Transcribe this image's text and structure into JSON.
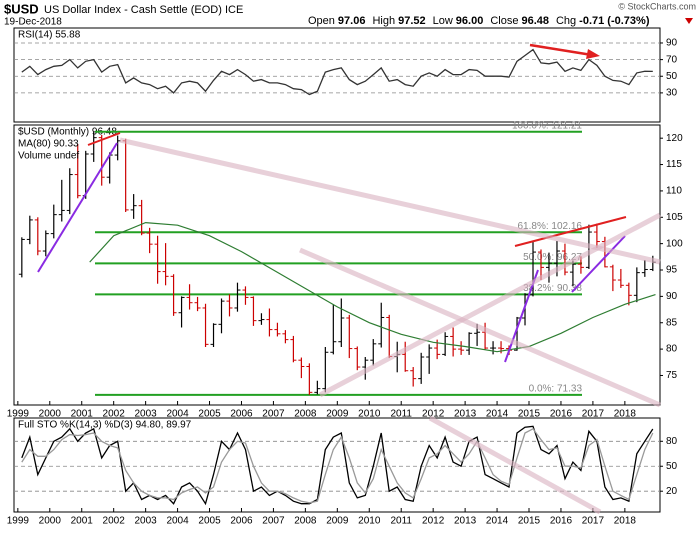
{
  "header": {
    "symbol": "$USD",
    "name": "US Dollar Index - Cash Settle (EOD) ICE",
    "date": "19-Dec-2018",
    "quote": [
      {
        "label": "Open",
        "value": "97.06"
      },
      {
        "label": "High",
        "value": "97.52"
      },
      {
        "label": "Low",
        "value": "96.00"
      },
      {
        "label": "Close",
        "value": "96.48"
      },
      {
        "label": "Chg",
        "value": "-0.71 (-0.73%)"
      }
    ],
    "credit": "© StockCharts.com"
  },
  "chart_data": [
    {
      "type": "line",
      "legend": "RSI(14) 55.88",
      "xlim": [
        1998.88,
        2019.1
      ],
      "ylim": [
        -5,
        108
      ],
      "yticks": [
        30,
        50,
        70,
        90
      ],
      "grid": true,
      "x": [
        1999.125,
        1999.375,
        1999.625,
        1999.875,
        2000.125,
        2000.375,
        2000.625,
        2000.875,
        2001.125,
        2001.375,
        2001.625,
        2001.875,
        2002.125,
        2002.375,
        2002.625,
        2002.875,
        2003.125,
        2003.375,
        2003.625,
        2003.875,
        2004.125,
        2004.375,
        2004.625,
        2004.875,
        2005.125,
        2005.375,
        2005.625,
        2005.875,
        2006.125,
        2006.375,
        2006.625,
        2006.875,
        2007.125,
        2007.375,
        2007.625,
        2007.875,
        2008.125,
        2008.375,
        2008.625,
        2008.875,
        2009.125,
        2009.375,
        2009.625,
        2009.875,
        2010.125,
        2010.375,
        2010.625,
        2010.875,
        2011.125,
        2011.375,
        2011.625,
        2011.875,
        2012.125,
        2012.375,
        2012.625,
        2012.875,
        2013.125,
        2013.375,
        2013.625,
        2013.875,
        2014.125,
        2014.375,
        2014.625,
        2014.875,
        2015.125,
        2015.375,
        2015.625,
        2015.875,
        2016.125,
        2016.375,
        2016.625,
        2016.875,
        2017.125,
        2017.375,
        2017.625,
        2017.875,
        2018.125,
        2018.375,
        2018.625,
        2018.875
      ],
      "series": [
        {
          "color": "#333333",
          "values": [
            55,
            62,
            52,
            58,
            62,
            63,
            70,
            60,
            68,
            70,
            55,
            62,
            64,
            42,
            48,
            42,
            40,
            35,
            38,
            30,
            42,
            44,
            42,
            32,
            45,
            56,
            52,
            58,
            52,
            44,
            46,
            42,
            42,
            40,
            35,
            34,
            28,
            32,
            55,
            58,
            60,
            46,
            40,
            44,
            52,
            60,
            44,
            46,
            40,
            38,
            50,
            54,
            50,
            58,
            52,
            52,
            58,
            57,
            50,
            50,
            50,
            49,
            68,
            75,
            82,
            66,
            65,
            67,
            56,
            60,
            57,
            70,
            63,
            50,
            45,
            44,
            40,
            54,
            56,
            55.88
          ]
        }
      ]
    },
    {
      "type": "ohlc",
      "legend": "$USD (Monthly) 96.48",
      "legend2": "Volume undef",
      "xlim": [
        1998.88,
        2019.1
      ],
      "ylim": [
        69.4,
        122.5
      ],
      "yticks": [
        75,
        80,
        85,
        90,
        95,
        100,
        105,
        110,
        115,
        120
      ],
      "xticks": [
        1999,
        2000,
        2001,
        2002,
        2003,
        2004,
        2005,
        2006,
        2007,
        2008,
        2009,
        2010,
        2011,
        2012,
        2013,
        2014,
        2015,
        2016,
        2017,
        2018
      ],
      "up_color": "#000000",
      "down_color": "#cc0000",
      "x": [
        1999.125,
        1999.375,
        1999.625,
        1999.875,
        2000.125,
        2000.375,
        2000.625,
        2000.875,
        2001.125,
        2001.375,
        2001.625,
        2001.875,
        2002.125,
        2002.375,
        2002.625,
        2002.875,
        2003.125,
        2003.375,
        2003.625,
        2003.875,
        2004.125,
        2004.375,
        2004.625,
        2004.875,
        2005.125,
        2005.375,
        2005.625,
        2005.875,
        2006.125,
        2006.375,
        2006.625,
        2006.875,
        2007.125,
        2007.375,
        2007.625,
        2007.875,
        2008.125,
        2008.375,
        2008.625,
        2008.875,
        2009.125,
        2009.375,
        2009.625,
        2009.875,
        2010.125,
        2010.375,
        2010.625,
        2010.875,
        2011.125,
        2011.375,
        2011.625,
        2011.875,
        2012.125,
        2012.375,
        2012.625,
        2012.875,
        2013.125,
        2013.375,
        2013.625,
        2013.875,
        2014.125,
        2014.375,
        2014.625,
        2014.875,
        2015.125,
        2015.375,
        2015.625,
        2015.875,
        2016.125,
        2016.375,
        2016.625,
        2016.875,
        2017.125,
        2017.375,
        2017.625,
        2017.875,
        2018.125,
        2018.375,
        2018.625,
        2018.875
      ],
      "open": [
        94.2,
        100.8,
        104.5,
        98.6,
        101.9,
        105.5,
        106.3,
        113.1,
        109.1,
        117.0,
        120.1,
        112.6,
        116.8,
        119.5,
        106.4,
        107.2,
        102.0,
        99.9,
        94.7,
        93.8,
        86.9,
        89.8,
        88.8,
        87.8,
        80.9,
        84.7,
        89.1,
        87.8,
        91.2,
        89.8,
        85.4,
        85.6,
        83.7,
        82.9,
        81.8,
        77.9,
        76.7,
        71.8,
        72.5,
        79.4,
        81.4,
        85.9,
        80.1,
        76.6,
        77.9,
        81.0,
        86.0,
        78.6,
        79.0,
        75.9,
        74.4,
        78.5,
        80.2,
        79.0,
        82.4,
        80.0,
        79.8,
        83.0,
        83.2,
        80.2,
        80.2,
        80.1,
        79.8,
        85.9,
        90.3,
        98.4,
        95.5,
        96.3,
        98.6,
        94.6,
        96.1,
        95.5,
        102.2,
        100.4,
        95.6,
        93.1,
        92.1,
        90.2,
        94.5,
        95.1
      ],
      "high": [
        101.2,
        105.3,
        105.0,
        102.5,
        107.4,
        112.1,
        114.3,
        118.9,
        117.6,
        121.21,
        120.6,
        117.3,
        120.5,
        119.9,
        109.4,
        108.3,
        103.0,
        101.5,
        100.1,
        94.2,
        90.0,
        92.3,
        89.9,
        88.6,
        84.9,
        89.6,
        90.4,
        92.6,
        91.9,
        90.0,
        86.8,
        87.7,
        85.0,
        83.6,
        82.5,
        78.4,
        77.3,
        74.0,
        80.4,
        88.5,
        89.6,
        86.5,
        80.5,
        78.5,
        81.9,
        88.8,
        86.5,
        81.4,
        81.4,
        76.6,
        79.3,
        80.9,
        81.8,
        83.2,
        84.1,
        81.5,
        83.2,
        84.8,
        85.0,
        81.5,
        81.5,
        80.7,
        86.1,
        90.6,
        100.4,
        98.9,
        98.3,
        100.5,
        100.0,
        96.8,
        97.6,
        103.6,
        103.8,
        101.3,
        96.0,
        95.2,
        92.6,
        95.5,
        96.9,
        97.7
      ],
      "low": [
        93.6,
        99.9,
        97.8,
        97.6,
        101.0,
        104.2,
        105.6,
        108.6,
        108.5,
        115.5,
        111.0,
        111.4,
        115.8,
        106.0,
        104.7,
        101.6,
        98.2,
        92.4,
        92.1,
        86.3,
        84.1,
        87.5,
        87.2,
        80.4,
        80.4,
        83.0,
        86.2,
        87.1,
        88.4,
        84.4,
        84.6,
        82.4,
        82.4,
        81.1,
        77.5,
        74.5,
        71.33,
        71.4,
        71.8,
        79.0,
        80.4,
        78.3,
        76.0,
        74.2,
        76.9,
        80.3,
        78.3,
        75.6,
        75.7,
        72.9,
        73.4,
        75.3,
        78.1,
        78.7,
        78.6,
        78.9,
        78.9,
        80.6,
        79.9,
        79.0,
        79.2,
        78.9,
        79.7,
        84.5,
        90.0,
        93.1,
        92.6,
        93.8,
        94.0,
        91.9,
        94.3,
        95.2,
        99.2,
        95.5,
        91.0,
        91.6,
        88.3,
        88.9,
        93.7,
        94.8
      ],
      "close": [
        100.8,
        104.5,
        98.6,
        101.9,
        105.5,
        106.3,
        113.1,
        109.1,
        117.0,
        120.1,
        112.6,
        116.8,
        119.5,
        106.4,
        107.2,
        102.0,
        99.9,
        94.7,
        93.8,
        86.9,
        89.8,
        88.8,
        87.8,
        80.9,
        84.7,
        89.1,
        87.8,
        91.2,
        89.8,
        85.4,
        85.6,
        83.7,
        82.9,
        81.8,
        77.9,
        76.7,
        71.8,
        72.5,
        79.4,
        81.4,
        85.9,
        80.1,
        76.6,
        77.9,
        81.0,
        86.0,
        78.6,
        79.0,
        75.9,
        74.4,
        78.5,
        80.2,
        79.0,
        82.4,
        80.0,
        79.8,
        83.0,
        83.2,
        80.2,
        80.2,
        80.1,
        79.8,
        85.9,
        90.3,
        98.4,
        95.5,
        96.3,
        98.6,
        94.6,
        96.1,
        95.5,
        102.2,
        100.4,
        95.6,
        93.1,
        92.1,
        90.2,
        94.5,
        95.1,
        96.48
      ],
      "ma": {
        "legend": "MA(80) 90.33",
        "color": "#2e7d32",
        "x": [
          2001.25,
          2002,
          2003,
          2004,
          2005,
          2006,
          2007,
          2008,
          2009,
          2010,
          2011,
          2012,
          2013,
          2014,
          2015,
          2016,
          2017,
          2018,
          2018.96
        ],
        "values": [
          96.5,
          101.5,
          104.0,
          103.5,
          101.5,
          98.5,
          95.0,
          91.5,
          88.0,
          85.0,
          82.8,
          81.3,
          80.5,
          79.5,
          80.5,
          83.0,
          86.0,
          88.5,
          90.33
        ]
      },
      "fib_color": "#22a022",
      "fib_levels": [
        {
          "label": "100.0%: 121.21",
          "value": 121.21
        },
        {
          "label": "61.8%: 102.16",
          "value": 102.16
        },
        {
          "label": "50.0%: 96.27",
          "value": 96.27
        },
        {
          "label": "38.2%: 90.38",
          "value": 90.38
        },
        {
          "label": "0.0%: 71.33",
          "value": 71.33
        }
      ]
    },
    {
      "type": "line",
      "legend": "Full STO %K(14,3) %D(3) 94.80, 89.97",
      "xlim": [
        1998.88,
        2019.1
      ],
      "ylim": [
        -5,
        108
      ],
      "yticks": [
        20,
        50,
        80
      ],
      "grid": true,
      "xticks": [
        1999,
        2000,
        2001,
        2002,
        2003,
        2004,
        2005,
        2006,
        2007,
        2008,
        2009,
        2010,
        2011,
        2012,
        2013,
        2014,
        2015,
        2016,
        2017,
        2018
      ],
      "x": [
        1999.125,
        1999.375,
        1999.625,
        1999.875,
        2000.125,
        2000.375,
        2000.625,
        2000.875,
        2001.125,
        2001.375,
        2001.625,
        2001.875,
        2002.125,
        2002.375,
        2002.625,
        2002.875,
        2003.125,
        2003.375,
        2003.625,
        2003.875,
        2004.125,
        2004.375,
        2004.625,
        2004.875,
        2005.125,
        2005.375,
        2005.625,
        2005.875,
        2006.125,
        2006.375,
        2006.625,
        2006.875,
        2007.125,
        2007.375,
        2007.625,
        2007.875,
        2008.125,
        2008.375,
        2008.625,
        2008.875,
        2009.125,
        2009.375,
        2009.625,
        2009.875,
        2010.125,
        2010.375,
        2010.625,
        2010.875,
        2011.125,
        2011.375,
        2011.625,
        2011.875,
        2012.125,
        2012.375,
        2012.625,
        2012.875,
        2013.125,
        2013.375,
        2013.625,
        2013.875,
        2014.125,
        2014.375,
        2014.625,
        2014.875,
        2015.125,
        2015.375,
        2015.625,
        2015.875,
        2016.125,
        2016.375,
        2016.625,
        2016.875,
        2017.125,
        2017.375,
        2017.625,
        2017.875,
        2018.125,
        2018.375,
        2018.625,
        2018.875
      ],
      "series": [
        {
          "color": "#000000",
          "values": [
            60,
            85,
            40,
            60,
            80,
            85,
            95,
            80,
            90,
            95,
            60,
            75,
            80,
            20,
            30,
            10,
            15,
            10,
            15,
            5,
            25,
            30,
            20,
            5,
            40,
            80,
            70,
            90,
            70,
            20,
            25,
            15,
            20,
            15,
            8,
            5,
            5,
            10,
            70,
            85,
            90,
            30,
            12,
            15,
            50,
            90,
            20,
            25,
            10,
            8,
            50,
            75,
            60,
            85,
            55,
            50,
            80,
            85,
            40,
            35,
            30,
            25,
            90,
            97,
            98,
            70,
            65,
            75,
            35,
            55,
            45,
            92,
            80,
            25,
            10,
            12,
            8,
            65,
            80,
            94.8
          ]
        },
        {
          "color": "#999999",
          "values": [
            55,
            70,
            62,
            62,
            70,
            82,
            88,
            87,
            88,
            90,
            80,
            75,
            72,
            45,
            30,
            20,
            15,
            12,
            12,
            10,
            18,
            22,
            25,
            18,
            25,
            55,
            70,
            80,
            78,
            50,
            30,
            20,
            20,
            17,
            12,
            8,
            6,
            8,
            40,
            70,
            85,
            60,
            30,
            18,
            35,
            70,
            50,
            30,
            18,
            12,
            35,
            60,
            65,
            75,
            65,
            55,
            65,
            80,
            60,
            40,
            32,
            28,
            60,
            90,
            95,
            82,
            70,
            72,
            50,
            50,
            48,
            75,
            82,
            50,
            20,
            15,
            10,
            40,
            70,
            89.97
          ]
        }
      ]
    }
  ]
}
